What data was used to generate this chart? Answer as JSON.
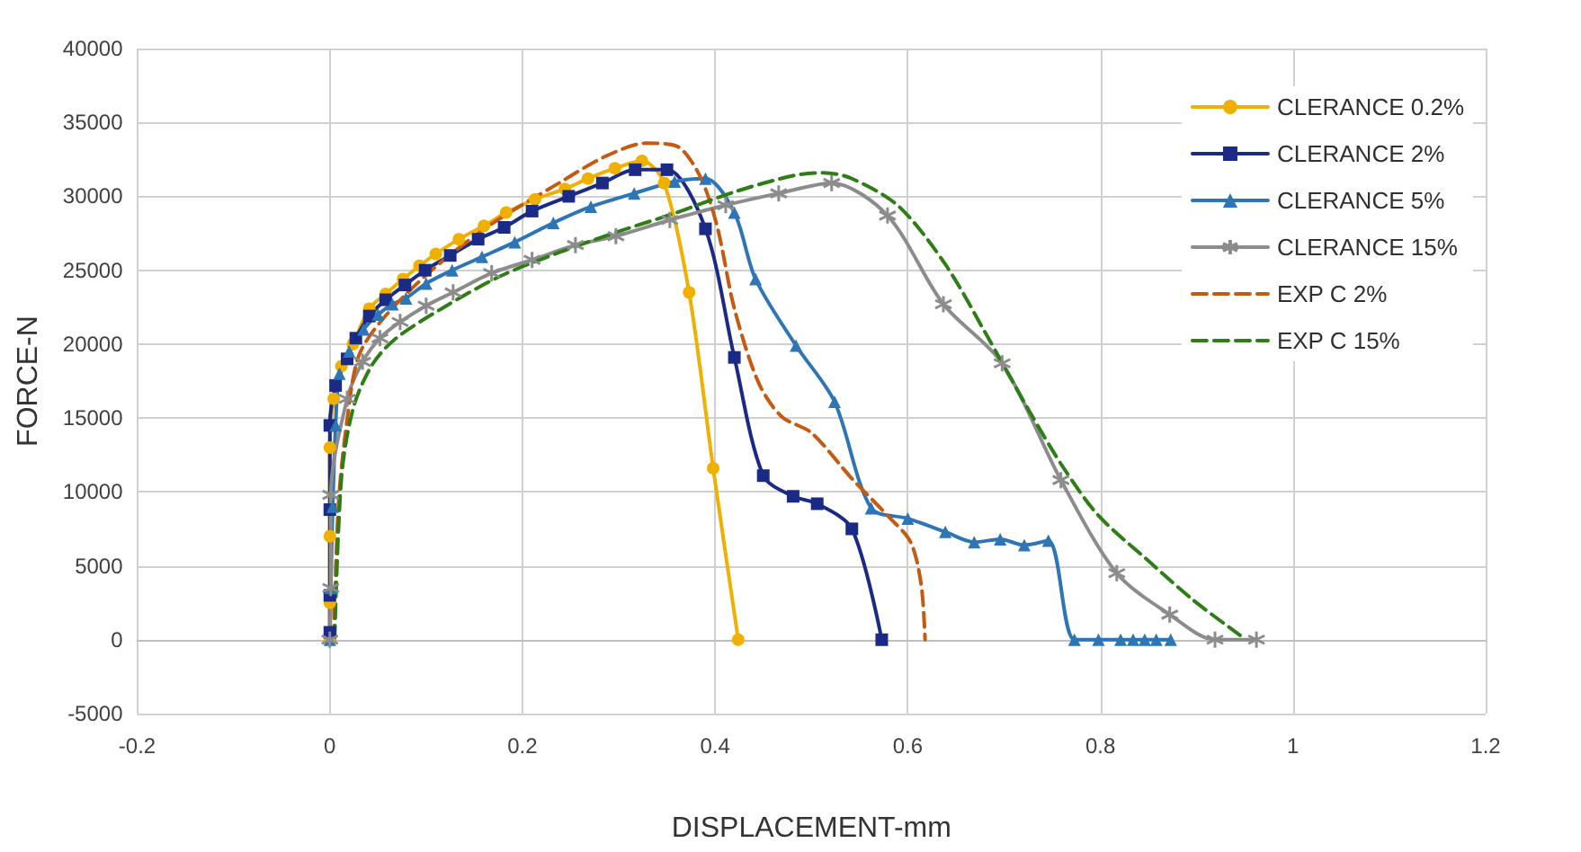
{
  "chart_data": {
    "type": "line",
    "xlabel": "DISPLACEMENT-mm",
    "ylabel": "FORCE-N",
    "xlim": [
      -0.2,
      1.2
    ],
    "xticks": [
      -0.2,
      0,
      0.2,
      0.4,
      0.6,
      0.8,
      1,
      1.2
    ],
    "ylim": [
      -5000,
      40000
    ],
    "yticks": [
      -5000,
      0,
      5000,
      10000,
      15000,
      20000,
      25000,
      30000,
      35000,
      40000
    ],
    "grid": true,
    "legend": "top right",
    "series": [
      {
        "name": "CLERANCE 0.2%",
        "color": "#f0b000",
        "marker": "circle",
        "line_style": "solid",
        "x": [
          0,
          0,
          0,
          0,
          0.004,
          0.012,
          0.024,
          0.041,
          0.058,
          0.076,
          0.093,
          0.11,
          0.134,
          0.16,
          0.183,
          0.213,
          0.244,
          0.268,
          0.296,
          0.324,
          0.347,
          0.373,
          0.398,
          0.424
        ],
        "values": [
          0,
          2500,
          7000,
          13000,
          16300,
          18500,
          20000,
          22400,
          23400,
          24400,
          25300,
          26100,
          27100,
          28000,
          28900,
          29800,
          30500,
          31200,
          31900,
          32400,
          30900,
          23500,
          11600,
          0
        ]
      },
      {
        "name": "CLERANCE 2%",
        "color": "#1b2a85",
        "marker": "square",
        "line_style": "solid",
        "x": [
          0,
          0,
          0,
          0,
          0.006,
          0.018,
          0.027,
          0.041,
          0.058,
          0.078,
          0.099,
          0.125,
          0.154,
          0.181,
          0.21,
          0.248,
          0.283,
          0.317,
          0.35,
          0.39,
          0.42,
          0.45,
          0.481,
          0.506,
          0.542,
          0.573
        ],
        "values": [
          500,
          3000,
          8800,
          14500,
          17200,
          19000,
          20400,
          21900,
          23000,
          24000,
          25000,
          26000,
          27100,
          27900,
          29000,
          30000,
          30900,
          31800,
          31800,
          27800,
          19100,
          11100,
          9700,
          9200,
          7500,
          0
        ]
      },
      {
        "name": "CLERANCE 5%",
        "color": "#2e75b6",
        "marker": "triangle",
        "line_style": "solid",
        "x": [
          0,
          0.001,
          0.003,
          0.006,
          0.01,
          0.02,
          0.035,
          0.05,
          0.065,
          0.079,
          0.1,
          0.127,
          0.158,
          0.192,
          0.232,
          0.271,
          0.316,
          0.358,
          0.39,
          0.42,
          0.442,
          0.484,
          0.524,
          0.562,
          0.6,
          0.639,
          0.669,
          0.696,
          0.721,
          0.746,
          0.773,
          0.798,
          0.821,
          0.834,
          0.846,
          0.858,
          0.873
        ],
        "values": [
          0,
          3500,
          9000,
          14500,
          18000,
          19500,
          21000,
          22000,
          22700,
          23100,
          24100,
          25000,
          25900,
          26900,
          28200,
          29300,
          30200,
          31000,
          31200,
          28900,
          24400,
          19900,
          16100,
          8900,
          8200,
          7300,
          6600,
          6800,
          6400,
          6700,
          0,
          0,
          0,
          0,
          0,
          0,
          0
        ]
      },
      {
        "name": "CLERANCE 15%",
        "color": "#8c8c8c",
        "marker": "cross",
        "line_style": "solid",
        "x": [
          0,
          0.001,
          0.001,
          0.018,
          0.034,
          0.052,
          0.073,
          0.1,
          0.128,
          0.168,
          0.21,
          0.255,
          0.297,
          0.353,
          0.411,
          0.466,
          0.521,
          0.579,
          0.637,
          0.698,
          0.759,
          0.817,
          0.872,
          0.919,
          0.962
        ],
        "values": [
          0,
          3500,
          9800,
          16300,
          18800,
          20400,
          21500,
          22600,
          23500,
          24800,
          25700,
          26700,
          27300,
          28400,
          29400,
          30200,
          30900,
          28700,
          22700,
          18700,
          10800,
          4500,
          1700,
          0,
          0
        ]
      },
      {
        "name": "EXP C 2%",
        "color": "#c55a11",
        "marker": "none",
        "line_style": "dashed",
        "x": [
          0.004,
          0.009,
          0.018,
          0.03,
          0.055,
          0.104,
          0.165,
          0.238,
          0.286,
          0.329,
          0.36,
          0.384,
          0.402,
          0.42,
          0.445,
          0.469,
          0.5,
          0.542,
          0.579,
          0.603,
          0.614,
          0.618
        ],
        "values": [
          0,
          9200,
          14900,
          19200,
          21700,
          24900,
          28000,
          30900,
          32700,
          33600,
          33400,
          31400,
          28000,
          22400,
          17400,
          15100,
          14000,
          10900,
          8400,
          6600,
          3700,
          0
        ]
      },
      {
        "name": "EXP C 15%",
        "color": "#2e7d17",
        "marker": "none",
        "line_style": "dashed",
        "x": [
          0.005,
          0.012,
          0.024,
          0.043,
          0.067,
          0.116,
          0.177,
          0.238,
          0.299,
          0.36,
          0.42,
          0.481,
          0.512,
          0.542,
          0.591,
          0.64,
          0.682,
          0.725,
          0.762,
          0.798,
          0.847,
          0.896,
          0.945
        ],
        "values": [
          0,
          10900,
          15600,
          18500,
          20300,
          22400,
          24600,
          26200,
          27600,
          28900,
          30300,
          31400,
          31600,
          31200,
          29300,
          25300,
          20600,
          15600,
          11600,
          8400,
          5500,
          2700,
          300
        ]
      }
    ]
  }
}
